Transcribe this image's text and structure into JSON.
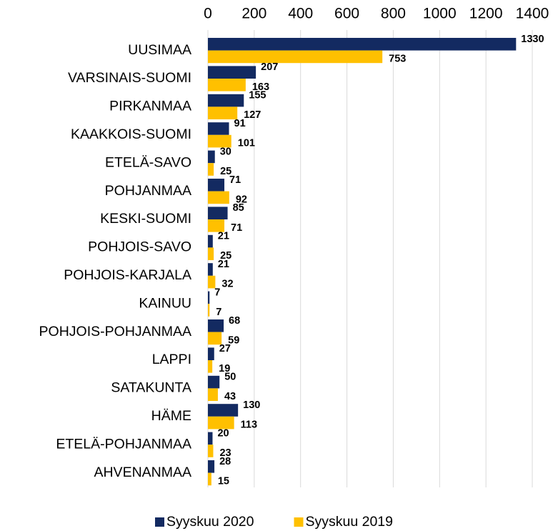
{
  "chart_data": {
    "type": "barh",
    "categories": [
      "UUSIMAA",
      "VARSINAIS-SUOMI",
      "PIRKANMAA",
      "KAAKKOIS-SUOMI",
      "ETELÄ-SAVO",
      "POHJANMAA",
      "KESKI-SUOMI",
      "POHJOIS-SAVO",
      "POHJOIS-KARJALA",
      "KAINUU",
      "POHJOIS-POHJANMAA",
      "LAPPI",
      "SATAKUNTA",
      "HÄME",
      "ETELÄ-POHJANMAA",
      "AHVENANMAA"
    ],
    "series": [
      {
        "name": "Syyskuu 2020",
        "color": "#132a61",
        "values": [
          1330,
          207,
          155,
          91,
          30,
          71,
          85,
          21,
          21,
          7,
          68,
          27,
          50,
          130,
          20,
          28
        ]
      },
      {
        "name": "Syyskuu 2019",
        "color": "#ffc000",
        "values": [
          753,
          163,
          127,
          101,
          25,
          92,
          71,
          25,
          32,
          7,
          59,
          19,
          43,
          113,
          23,
          15
        ]
      }
    ],
    "xlim": [
      0,
      1400
    ],
    "xticks": [
      0,
      200,
      400,
      600,
      800,
      1000,
      1200,
      1400
    ],
    "grid": true,
    "legend": "bottom"
  }
}
